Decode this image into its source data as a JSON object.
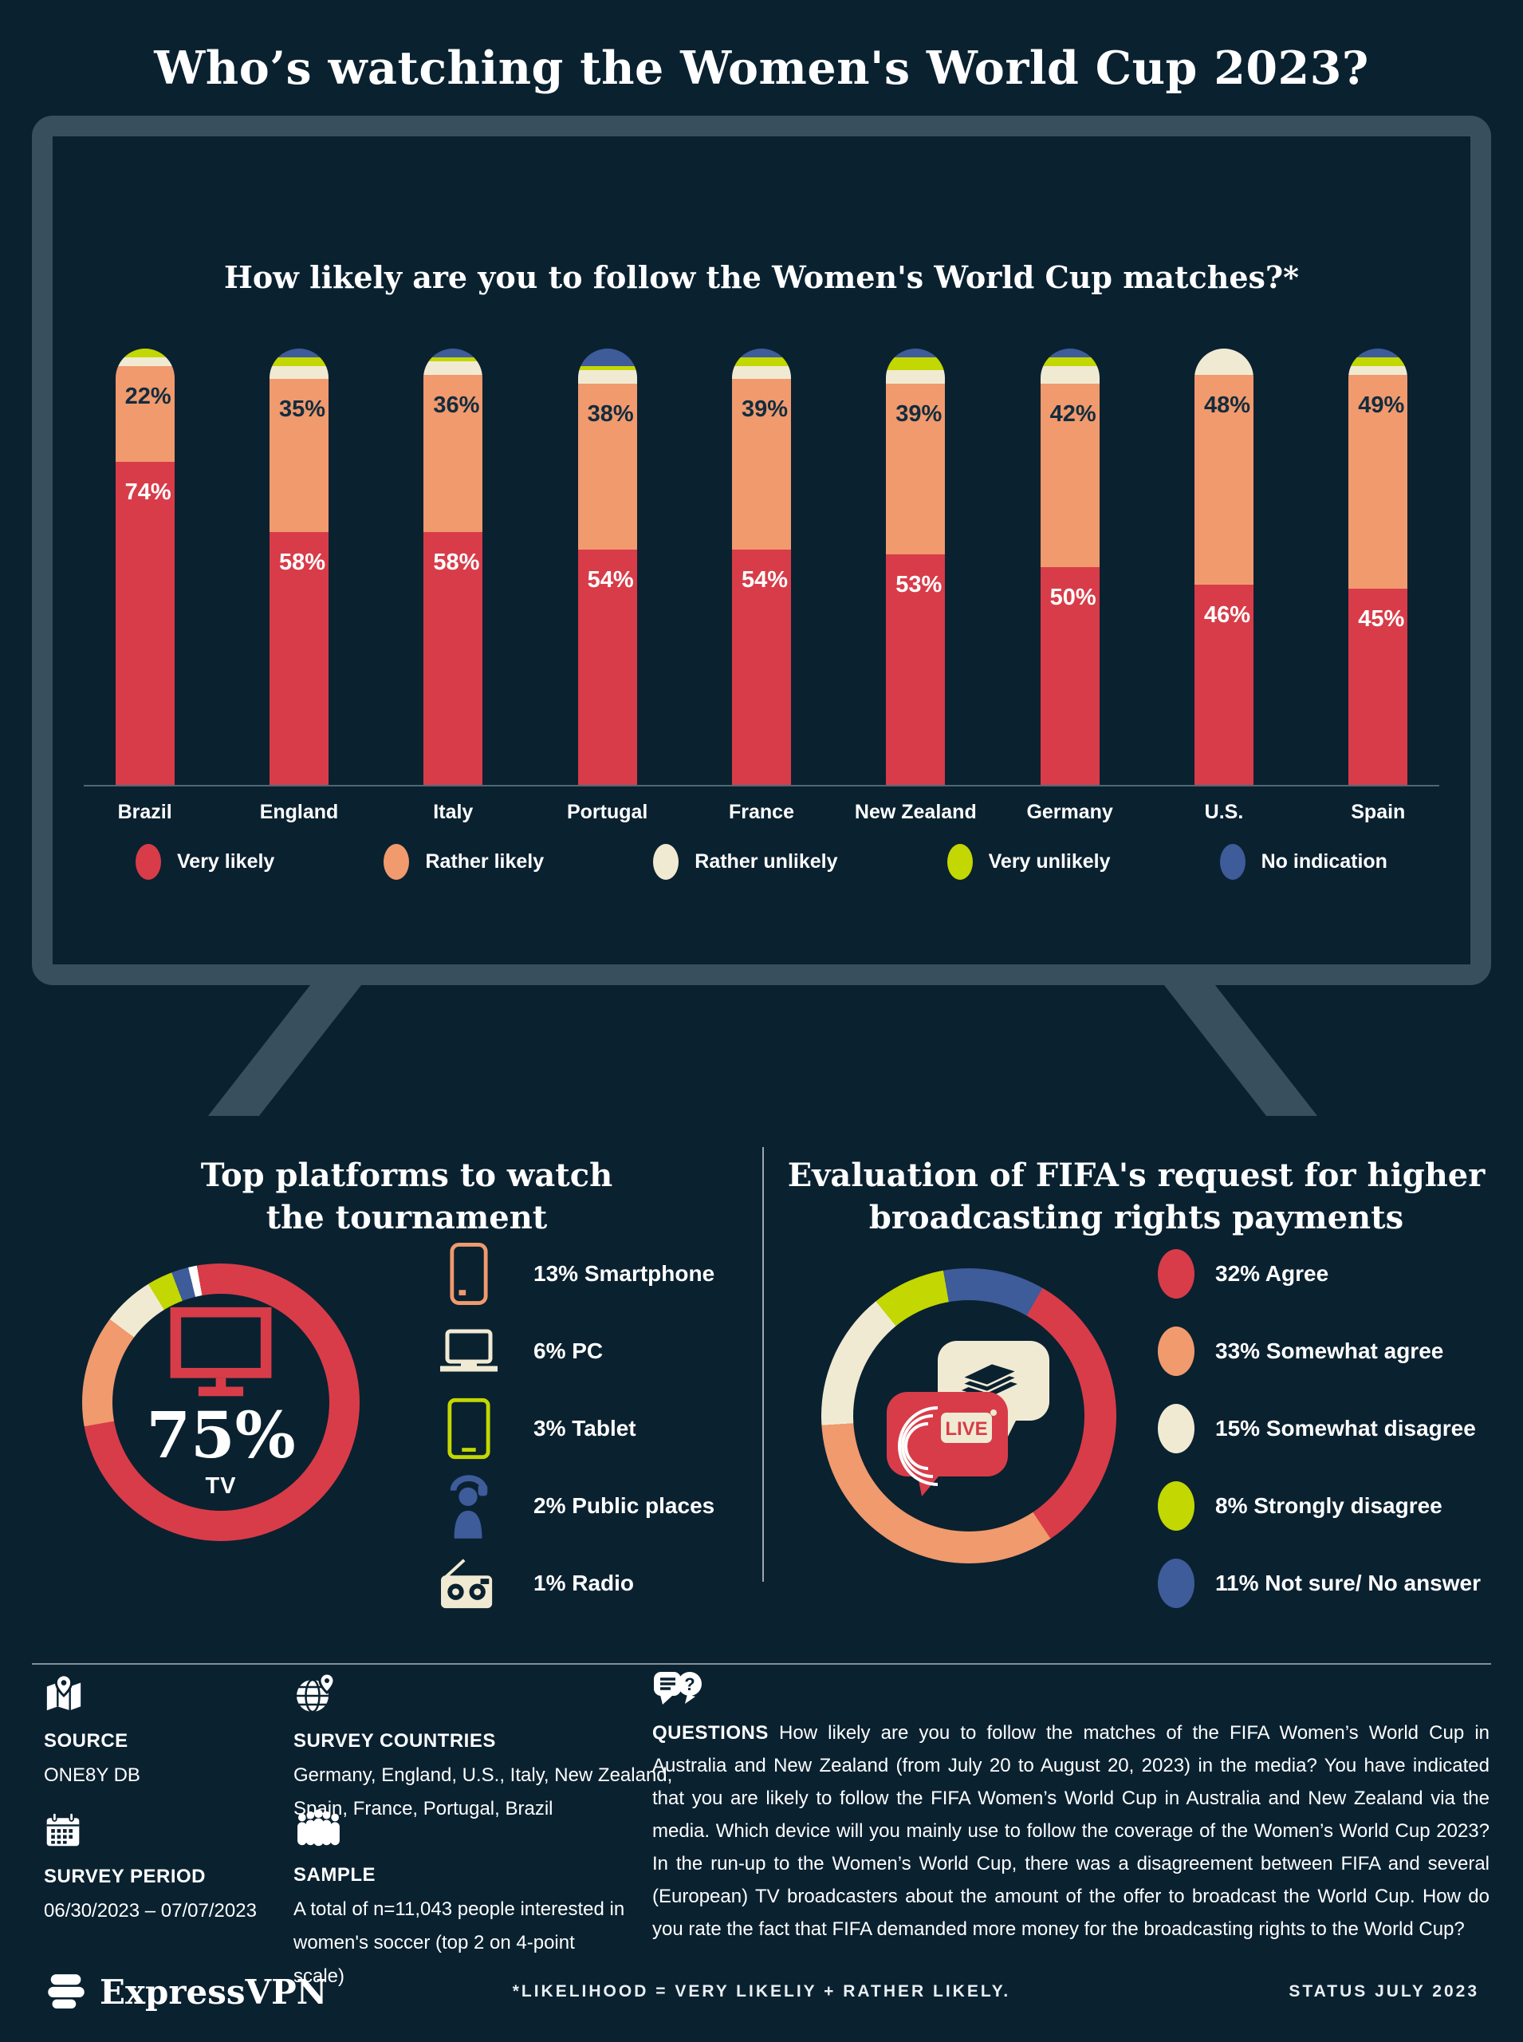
{
  "page": {
    "title": "Who’s watching the Women's World Cup 2023?"
  },
  "colors": {
    "background": "#0a2130",
    "tv_frame": "#38505e",
    "very_likely_red": "#d83c49",
    "rather_likely_orange": "#f09a6e",
    "rather_unlikely_cream": "#f1ead3",
    "very_unlikely_green": "#c3d702",
    "no_indication_blue": "#3e5b9a",
    "dark_text": "#132c3d",
    "white": "#ffffff"
  },
  "chart_data": [
    {
      "type": "bar",
      "stacked": true,
      "title": "How likely are you to follow the Women's World Cup matches?*",
      "unit": "%",
      "ylim": [
        0,
        100
      ],
      "grid": false,
      "legend_position": "bottom",
      "colors": {
        "very_likely": "#d83c49",
        "rather_likely": "#f09a6e",
        "rather_unlikely": "#f1ead3",
        "very_unlikely": "#c3d702",
        "no_indication": "#3e5b9a"
      },
      "legend": [
        {
          "key": "very_likely",
          "label": "Very likely"
        },
        {
          "key": "rather_likely",
          "label": "Rather likely"
        },
        {
          "key": "rather_unlikely",
          "label": "Rather unlikely"
        },
        {
          "key": "very_unlikely",
          "label": "Very unlikely"
        },
        {
          "key": "no_indication",
          "label": "No indication"
        }
      ],
      "note": "Only Very likely and Rather likely values are labeled in the image; small top segments are estimated from pixels.",
      "bars": [
        {
          "country": "Brazil",
          "very_likely": 74,
          "rather_likely": 22,
          "rather_unlikely": 2,
          "very_unlikely": 2,
          "no_indication": 0
        },
        {
          "country": "England",
          "very_likely": 58,
          "rather_likely": 35,
          "rather_unlikely": 3,
          "very_unlikely": 2,
          "no_indication": 2
        },
        {
          "country": "Italy",
          "very_likely": 58,
          "rather_likely": 36,
          "rather_unlikely": 3,
          "very_unlikely": 1,
          "no_indication": 2
        },
        {
          "country": "Portugal",
          "very_likely": 54,
          "rather_likely": 38,
          "rather_unlikely": 3,
          "very_unlikely": 1,
          "no_indication": 4
        },
        {
          "country": "France",
          "very_likely": 54,
          "rather_likely": 39,
          "rather_unlikely": 3,
          "very_unlikely": 2,
          "no_indication": 2
        },
        {
          "country": "New Zealand",
          "very_likely": 53,
          "rather_likely": 39,
          "rather_unlikely": 3,
          "very_unlikely": 3,
          "no_indication": 2
        },
        {
          "country": "Germany",
          "very_likely": 50,
          "rather_likely": 42,
          "rather_unlikely": 4,
          "very_unlikely": 2,
          "no_indication": 2
        },
        {
          "country": "U.S.",
          "very_likely": 46,
          "rather_likely": 48,
          "rather_unlikely": 6,
          "very_unlikely": 0,
          "no_indication": 0
        },
        {
          "country": "Spain",
          "very_likely": 45,
          "rather_likely": 49,
          "rather_unlikely": 2,
          "very_unlikely": 2,
          "no_indication": 2
        }
      ]
    },
    {
      "type": "pie",
      "title": "Top platforms to watch the tournament",
      "title_lines": [
        "Top platforms to watch",
        "the tournament"
      ],
      "center_value": "75%",
      "center_label": "TV",
      "start_angle": -10,
      "slices": [
        {
          "label": "TV",
          "value": 75,
          "color": "#d83c49"
        },
        {
          "label": "Smartphone",
          "value": 13,
          "color": "#f09a6e"
        },
        {
          "label": "PC",
          "value": 6,
          "color": "#f1ead3"
        },
        {
          "label": "Tablet",
          "value": 3,
          "color": "#c3d702"
        },
        {
          "label": "Public places",
          "value": 2,
          "color": "#3e5b9a"
        },
        {
          "label": "Radio",
          "value": 1,
          "color": "#ffffff"
        }
      ],
      "list": [
        {
          "text": "13% Smartphone",
          "icon": "smartphone-icon"
        },
        {
          "text": "6% PC",
          "icon": "pc-icon"
        },
        {
          "text": "3% Tablet",
          "icon": "tablet-icon"
        },
        {
          "text": "2% Public places",
          "icon": "public-places-icon"
        },
        {
          "text": "1% Radio",
          "icon": "radio-icon"
        }
      ]
    },
    {
      "type": "pie",
      "title": "Evaluation of FIFA's request for higher broadcasting rights payments",
      "title_lines": [
        "Evaluation of FIFA's request for higher",
        "broadcasting rights payments"
      ],
      "start_angle": -10,
      "live_badge": "LIVE",
      "ring_slices": [
        {
          "label": "Not sure/ No answer",
          "value": 11,
          "color": "#3e5b9a"
        },
        {
          "label": "Agree",
          "value": 32,
          "color": "#d83c49"
        },
        {
          "label": "Somewhat agree",
          "value": 33,
          "color": "#f09a6e"
        },
        {
          "label": "Somewhat disagree",
          "value": 15,
          "color": "#f1ead3"
        },
        {
          "label": "Strongly disagree",
          "value": 8,
          "color": "#c3d702"
        }
      ],
      "legend": [
        {
          "text": "32% Agree",
          "color": "#d83c49"
        },
        {
          "text": "33% Somewhat agree",
          "color": "#f09a6e"
        },
        {
          "text": "15% Somewhat disagree",
          "color": "#f1ead3"
        },
        {
          "text": "8% Strongly disagree",
          "color": "#c3d702"
        },
        {
          "text": "11% Not sure/ No answer",
          "color": "#3e5b9a"
        }
      ]
    }
  ],
  "footer": {
    "source": {
      "title": "SOURCE",
      "value": "ONE8Y DB"
    },
    "countries": {
      "title": "SURVEY COUNTRIES",
      "value": "Germany, England, U.S., Italy, New Zealand, Spain, France, Portugal, Brazil"
    },
    "period": {
      "title": "SURVEY PERIOD",
      "value": "06/30/2023 – 07/07/2023"
    },
    "sample": {
      "title": "SAMPLE",
      "value": "A total of n=11,043 people interested in women's soccer (top 2 on 4-point scale)"
    },
    "questions": {
      "title": "QUESTIONS",
      "body": "How likely are you to follow the matches of the FIFA Women’s World Cup in Australia and New Zealand (from July 20 to August 20, 2023) in the media? You have indicated that you are likely to follow the FIFA Women’s World Cup in Australia and New Zealand via the media. Which device will you mainly use to follow the coverage of the Women’s World Cup 2023? In the run-up to the Women’s World Cup, there was a disagreement between FIFA and several (European) TV broadcasters about the amount of the offer to broadcast the World Cup. How do you rate the fact that FIFA demanded more money for the broadcasting rights to the World Cup?"
    }
  },
  "bottom": {
    "brand": "ExpressVPN",
    "footnote": "*LIKELIHOOD = VERY LIKELIY + RATHER LIKELY.",
    "status": "STATUS JULY 2023"
  }
}
